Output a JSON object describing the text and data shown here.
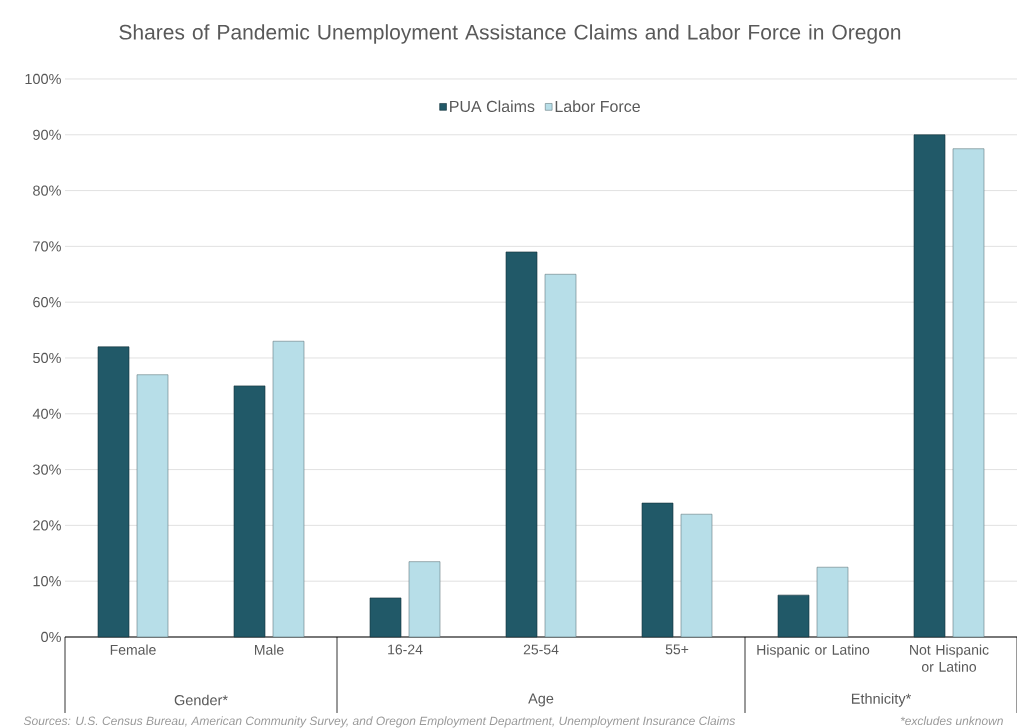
{
  "chart_data": {
    "type": "bar",
    "title": "Shares of Pandemic Unemployment Assistance Claims and Labor Force in Oregon",
    "categories": [
      "Female",
      "Male",
      "16-24",
      "25-54",
      "55+",
      "Hispanic or Latino",
      "Not Hispanic or Latino"
    ],
    "series": [
      {
        "name": "PUA Claims",
        "color": "#215968",
        "values": [
          52,
          45,
          7,
          69,
          24,
          7.5,
          90
        ]
      },
      {
        "name": "Labor Force",
        "color": "#b7dee8",
        "values": [
          47,
          53,
          13.5,
          65,
          22,
          12.5,
          87.5
        ]
      }
    ],
    "ylim": [
      0,
      100
    ],
    "yticks": [
      {
        "value": 0,
        "label": "0%"
      },
      {
        "value": 10,
        "label": "10%"
      },
      {
        "value": 20,
        "label": "20%"
      },
      {
        "value": 30,
        "label": "30%"
      },
      {
        "value": 40,
        "label": "40%"
      },
      {
        "value": 50,
        "label": "50%"
      },
      {
        "value": 60,
        "label": "60%"
      },
      {
        "value": 70,
        "label": "70%"
      },
      {
        "value": 80,
        "label": "80%"
      },
      {
        "value": 90,
        "label": "90%"
      },
      {
        "value": 100,
        "label": "100%"
      }
    ],
    "grid": "y",
    "legend": "top",
    "annotations": [
      "Gender*",
      "Age",
      "Ethnicity*",
      "Sources: U.S. Census Bureau, American Community Survey, and Oregon Employment Department, Unemployment Insurance Claims",
      "*excludes unknown"
    ]
  }
}
